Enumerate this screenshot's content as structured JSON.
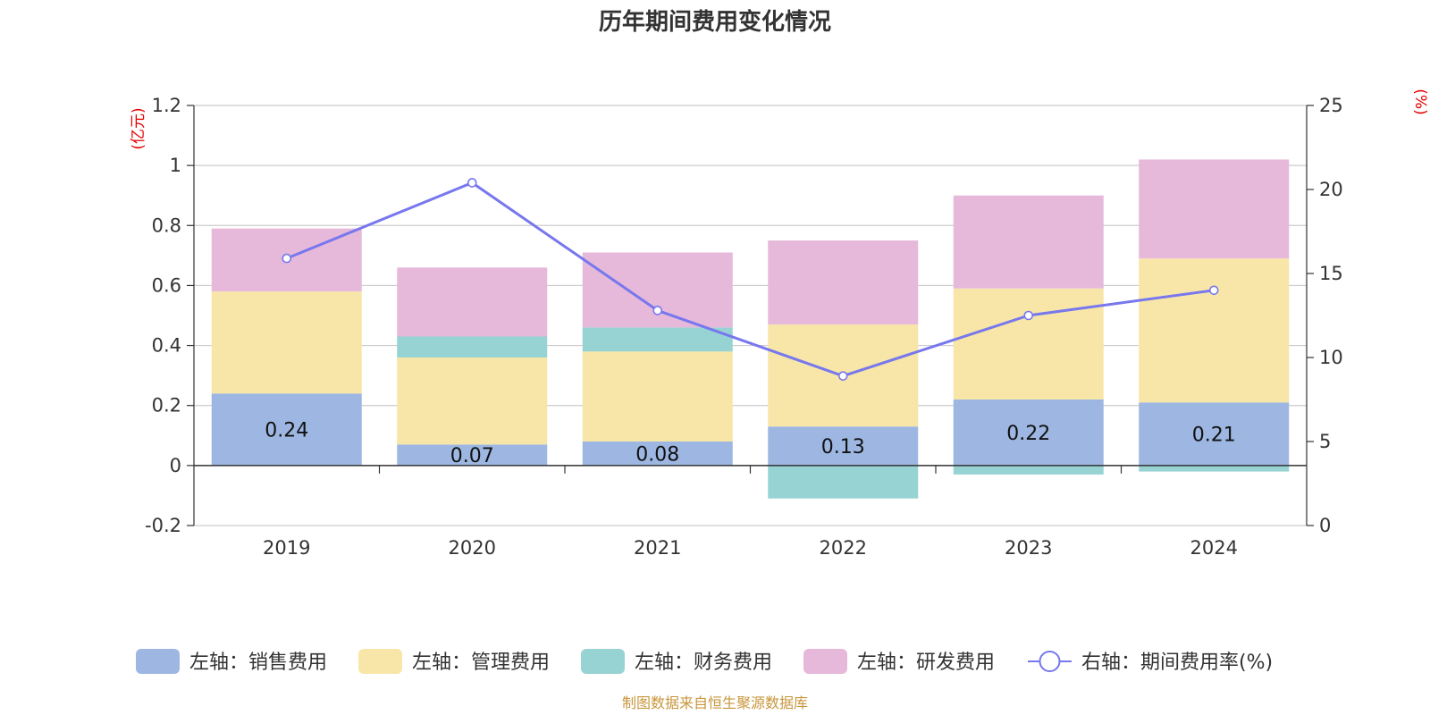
{
  "chart_data": {
    "type": "bar",
    "title": "历年期间费用变化情况",
    "categories": [
      "2019",
      "2020",
      "2021",
      "2022",
      "2023",
      "2024"
    ],
    "y_left": {
      "unit": "(亿元)",
      "ylim": [
        -0.2,
        1.2
      ],
      "ticks": [
        "-0.2",
        "0",
        "0.2",
        "0.4",
        "0.6",
        "0.8",
        "1",
        "1.2"
      ]
    },
    "y_right": {
      "unit": "(%)",
      "ylim": [
        0,
        25
      ],
      "ticks": [
        "0",
        "5",
        "10",
        "15",
        "20",
        "25"
      ]
    },
    "series": [
      {
        "name": "左轴：销售费用",
        "axis": "left",
        "kind": "bar",
        "color": "#9db7e2",
        "values": [
          0.24,
          0.07,
          0.08,
          0.13,
          0.22,
          0.21
        ],
        "labels": [
          "0.24",
          "0.07",
          "0.08",
          "0.13",
          "0.22",
          "0.21"
        ]
      },
      {
        "name": "左轴：管理费用",
        "axis": "left",
        "kind": "bar",
        "color": "#f7e6a8",
        "values": [
          0.34,
          0.29,
          0.3,
          0.34,
          0.37,
          0.48
        ]
      },
      {
        "name": "左轴：财务费用",
        "axis": "left",
        "kind": "bar",
        "color": "#97d3d3",
        "values": [
          0.0,
          0.07,
          0.08,
          -0.11,
          -0.03,
          -0.02
        ]
      },
      {
        "name": "左轴：研发费用",
        "axis": "left",
        "kind": "bar",
        "color": "#e6b9da",
        "values": [
          0.21,
          0.23,
          0.25,
          0.28,
          0.31,
          0.33
        ]
      },
      {
        "name": "右轴：期间费用率(%)",
        "axis": "right",
        "kind": "line",
        "color": "#7777ee",
        "values": [
          15.9,
          20.4,
          12.8,
          8.9,
          12.5,
          14.0
        ]
      }
    ],
    "grid": true,
    "legend_position": "bottom"
  },
  "source": "制图数据来自恒生聚源数据库"
}
